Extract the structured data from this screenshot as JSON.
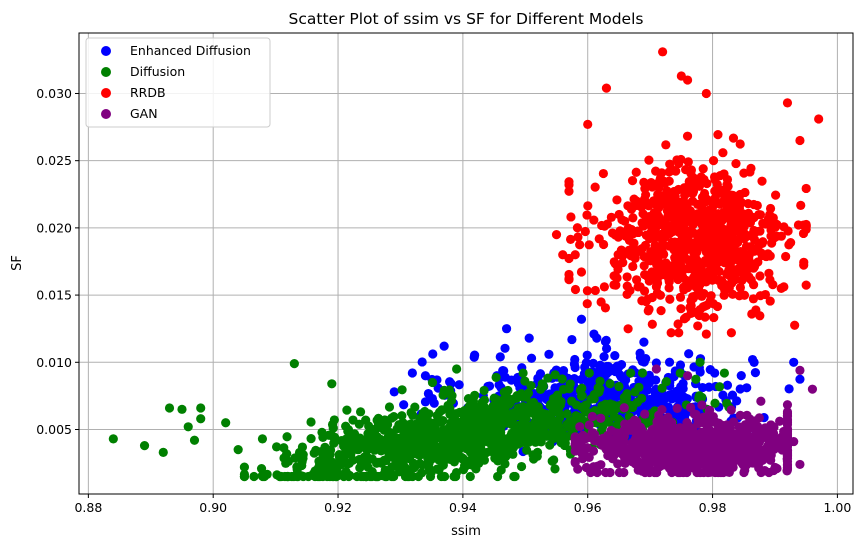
{
  "chart_data": {
    "type": "scatter",
    "title": "Scatter Plot of ssim vs SF for Different Models",
    "xlabel": "ssim",
    "ylabel": "SF",
    "xlim": [
      0.8785,
      1.0025
    ],
    "ylim": [
      0.0002,
      0.0345
    ],
    "xticks": [
      0.88,
      0.9,
      0.92,
      0.94,
      0.96,
      0.98,
      1.0
    ],
    "xtick_labels": [
      "0.88",
      "0.90",
      "0.92",
      "0.94",
      "0.96",
      "0.98",
      "1.00"
    ],
    "yticks": [
      0.005,
      0.01,
      0.015,
      0.02,
      0.025,
      0.03
    ],
    "ytick_labels": [
      "0.005",
      "0.010",
      "0.015",
      "0.020",
      "0.025",
      "0.030"
    ],
    "grid": true,
    "legend_position": "upper left",
    "series": [
      {
        "name": "Enhanced Diffusion",
        "color": "#0000ff",
        "approx_count": 500,
        "ssim_range": [
          0.928,
          0.994
        ],
        "sf_range": [
          0.002,
          0.0135
        ],
        "ssim_center": 0.963,
        "sf_center": 0.0075,
        "points": [
          [
            0.947,
            0.0125
          ],
          [
            0.937,
            0.0112
          ],
          [
            0.929,
            0.0078
          ],
          [
            0.934,
            0.009
          ],
          [
            0.959,
            0.0132
          ],
          [
            0.993,
            0.01
          ],
          [
            0.961,
            0.0121
          ],
          [
            0.951,
            0.0103
          ],
          [
            0.969,
            0.0115
          ],
          [
            0.944,
            0.0082
          ]
        ]
      },
      {
        "name": "Diffusion",
        "color": "#008000",
        "approx_count": 1000,
        "ssim_range": [
          0.884,
          0.985
        ],
        "sf_range": [
          0.0015,
          0.01
        ],
        "ssim_center": 0.94,
        "sf_center": 0.0045,
        "points": [
          [
            0.884,
            0.0043
          ],
          [
            0.889,
            0.0038
          ],
          [
            0.892,
            0.0033
          ],
          [
            0.893,
            0.0066
          ],
          [
            0.895,
            0.0065
          ],
          [
            0.896,
            0.0052
          ],
          [
            0.897,
            0.0042
          ],
          [
            0.898,
            0.0066
          ],
          [
            0.898,
            0.0058
          ],
          [
            0.902,
            0.0055
          ],
          [
            0.904,
            0.0035
          ],
          [
            0.905,
            0.0022
          ],
          [
            0.913,
            0.0099
          ],
          [
            0.919,
            0.0084
          ],
          [
            0.921,
            0.0016
          ],
          [
            0.939,
            0.0095
          ],
          [
            0.978,
            0.01
          ],
          [
            0.965,
            0.0082
          ]
        ]
      },
      {
        "name": "RRDB",
        "color": "#ff0000",
        "approx_count": 800,
        "ssim_range": [
          0.955,
          0.997
        ],
        "sf_range": [
          0.012,
          0.0331
        ],
        "ssim_center": 0.977,
        "sf_center": 0.019,
        "points": [
          [
            0.972,
            0.0331
          ],
          [
            0.975,
            0.0313
          ],
          [
            0.976,
            0.031
          ],
          [
            0.963,
            0.0304
          ],
          [
            0.979,
            0.03
          ],
          [
            0.992,
            0.0293
          ],
          [
            0.997,
            0.0281
          ],
          [
            0.96,
            0.0277
          ],
          [
            0.994,
            0.0265
          ],
          [
            0.957,
            0.0232
          ],
          [
            0.956,
            0.018
          ],
          [
            0.958,
            0.018
          ],
          [
            0.979,
            0.0121
          ],
          [
            0.991,
            0.0155
          ],
          [
            0.955,
            0.0195
          ]
        ]
      },
      {
        "name": "GAN",
        "color": "#800080",
        "approx_count": 800,
        "ssim_range": [
          0.958,
          0.997
        ],
        "sf_range": [
          0.0015,
          0.0095
        ],
        "ssim_center": 0.977,
        "sf_center": 0.0038,
        "points": [
          [
            0.996,
            0.008
          ],
          [
            0.994,
            0.0094
          ],
          [
            0.994,
            0.0024
          ],
          [
            0.992,
            0.0043
          ],
          [
            0.993,
            0.0041
          ],
          [
            0.976,
            0.009
          ],
          [
            0.971,
            0.0095
          ]
        ]
      }
    ]
  }
}
